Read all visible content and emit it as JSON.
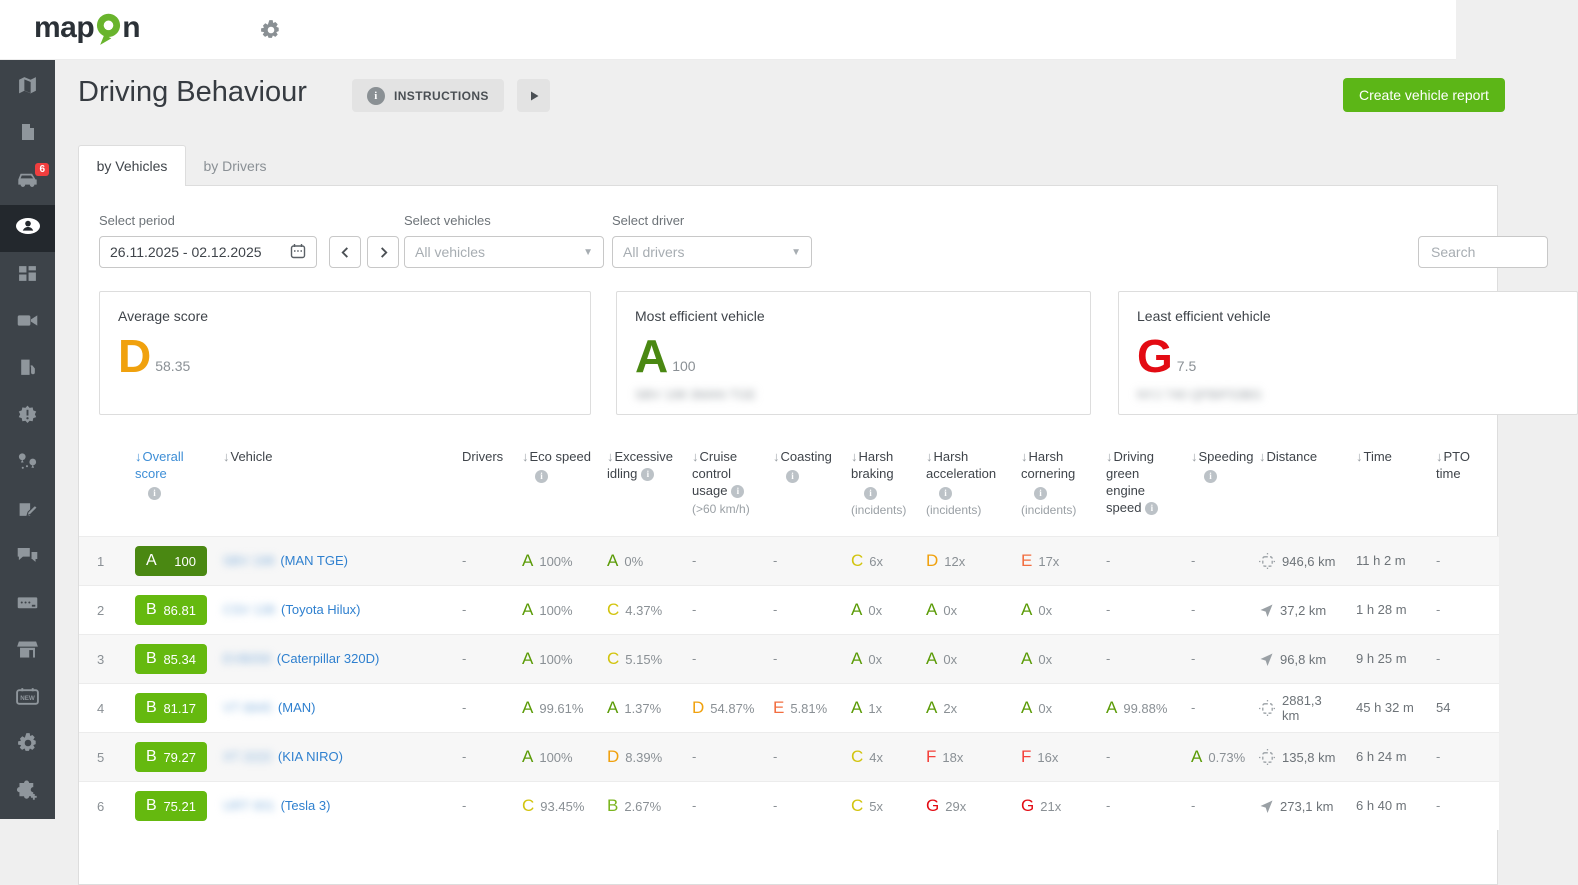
{
  "topbar": {
    "logo_text_left": "map",
    "logo_text_right": "n"
  },
  "sidebar": {
    "items": [
      {
        "name": "map",
        "icon": "map"
      },
      {
        "name": "documents",
        "icon": "doc"
      },
      {
        "name": "vehicles",
        "icon": "car",
        "badge": "6"
      },
      {
        "name": "drivers",
        "icon": "person",
        "active": true
      },
      {
        "name": "dashboard",
        "icon": "dash"
      },
      {
        "name": "video",
        "icon": "video"
      },
      {
        "name": "fuel",
        "icon": "fuel"
      },
      {
        "name": "alerts",
        "icon": "alert"
      },
      {
        "name": "routes",
        "icon": "route"
      },
      {
        "name": "tasks",
        "icon": "tasks"
      },
      {
        "name": "chat",
        "icon": "chat"
      },
      {
        "name": "keypad",
        "icon": "keypad"
      },
      {
        "name": "marketplace",
        "icon": "store"
      },
      {
        "name": "calendar-new",
        "icon": "calnew"
      },
      {
        "name": "settings",
        "icon": "gear"
      },
      {
        "name": "addons",
        "icon": "addon"
      }
    ]
  },
  "header": {
    "title": "Driving Behaviour",
    "instructions_label": "INSTRUCTIONS",
    "create_report_label": "Create vehicle report"
  },
  "tabs": {
    "by_vehicles": "by Vehicles",
    "by_drivers": "by Drivers"
  },
  "filters": {
    "period_label": "Select period",
    "period_value": "26.11.2025 - 02.12.2025",
    "vehicles_label": "Select vehicles",
    "vehicles_value": "All vehicles",
    "driver_label": "Select driver",
    "driver_value": "All drivers",
    "search_placeholder": "Search"
  },
  "cards": [
    {
      "title": "Average score",
      "grade": "D",
      "score": "58.35",
      "grade_color": "#f0a10e",
      "vehicle": ""
    },
    {
      "title": "Most efficient vehicle",
      "grade": "A",
      "score": "100",
      "grade_color": "#4a8812",
      "vehicle": "SBV 198 3MAN TGE",
      "vehicle_blurred": true
    },
    {
      "title": "Least efficient vehicle",
      "grade": "G",
      "score": "7.5",
      "grade_color": "#e30b13",
      "vehicle": "NYJ 740 QFBIF53BG",
      "vehicle_blurred": true
    }
  ],
  "table": {
    "grade_colors": {
      "A": "#5b9b07",
      "B": "#7ab41d",
      "C": "#d2c40f",
      "D": "#f0a10e",
      "E": "#f26d3f",
      "F": "#f4403a",
      "G": "#e30b13"
    },
    "badge_colors": {
      "A": "#4a8812",
      "B": "#65b90f"
    },
    "columns": [
      {
        "label": "Overall score"
      },
      {
        "label": "Vehicle"
      },
      {
        "label": "Drivers"
      },
      {
        "label": "Eco speed"
      },
      {
        "label": "Excessive idling"
      },
      {
        "label": "Cruise control usage",
        "sub": "(>60 km/h)"
      },
      {
        "label": "Coasting"
      },
      {
        "label": "Harsh braking",
        "sub": "(incidents)"
      },
      {
        "label": "Harsh acceleration",
        "sub": "(incidents)"
      },
      {
        "label": "Harsh cornering",
        "sub": "(incidents)"
      },
      {
        "label": "Driving green engine speed"
      },
      {
        "label": "Speeding"
      },
      {
        "label": "Distance"
      },
      {
        "label": "Time"
      },
      {
        "label": "PTO time"
      }
    ],
    "rows": [
      {
        "num": "1",
        "grade": "A",
        "score": "100",
        "plate": "SBV 198",
        "model": "(MAN TGE)",
        "drivers": "-",
        "eco": {
          "g": "A",
          "v": "100%"
        },
        "idling": {
          "g": "A",
          "v": "0%"
        },
        "cruise": null,
        "coasting": null,
        "braking": {
          "g": "C",
          "v": "6x"
        },
        "accel": {
          "g": "D",
          "v": "12x"
        },
        "cornering": {
          "g": "E",
          "v": "17x"
        },
        "green": null,
        "speeding": null,
        "dist_icon": "chip",
        "distance": "946,6 km",
        "time": "11 h 2 m",
        "pto": "-"
      },
      {
        "num": "2",
        "grade": "B",
        "score": "86.81",
        "plate": "CSV 138",
        "model": "(Toyota Hilux)",
        "drivers": "-",
        "eco": {
          "g": "A",
          "v": "100%"
        },
        "idling": {
          "g": "C",
          "v": "4.37%"
        },
        "cruise": null,
        "coasting": null,
        "braking": {
          "g": "A",
          "v": "0x"
        },
        "accel": {
          "g": "A",
          "v": "0x"
        },
        "cornering": {
          "g": "A",
          "v": "0x"
        },
        "green": null,
        "speeding": null,
        "dist_icon": "gps",
        "distance": "37,2 km",
        "time": "1 h 28 m",
        "pto": "-"
      },
      {
        "num": "3",
        "grade": "B",
        "score": "85.34",
        "plate": "EVB058",
        "model": "(Caterpillar 320D)",
        "drivers": "-",
        "eco": {
          "g": "A",
          "v": "100%"
        },
        "idling": {
          "g": "C",
          "v": "5.15%"
        },
        "cruise": null,
        "coasting": null,
        "braking": {
          "g": "A",
          "v": "0x"
        },
        "accel": {
          "g": "A",
          "v": "0x"
        },
        "cornering": {
          "g": "A",
          "v": "0x"
        },
        "green": null,
        "speeding": null,
        "dist_icon": "gps",
        "distance": "96,8 km",
        "time": "9 h 25 m",
        "pto": "-"
      },
      {
        "num": "4",
        "grade": "B",
        "score": "81.17",
        "plate": "VT 6845",
        "model": "(MAN)",
        "drivers": "-",
        "eco": {
          "g": "A",
          "v": "99.61%"
        },
        "idling": {
          "g": "A",
          "v": "1.37%"
        },
        "cruise": {
          "g": "D",
          "v": "54.87%"
        },
        "coasting": {
          "g": "E",
          "v": "5.81%"
        },
        "braking": {
          "g": "A",
          "v": "1x"
        },
        "accel": {
          "g": "A",
          "v": "2x"
        },
        "cornering": {
          "g": "A",
          "v": "0x"
        },
        "green": {
          "g": "A",
          "v": "99.88%"
        },
        "speeding": null,
        "dist_icon": "chip",
        "distance": "2881,3 km",
        "time": "45 h 32 m",
        "pto": "54"
      },
      {
        "num": "5",
        "grade": "B",
        "score": "79.27",
        "plate": "XT 2222",
        "model": "(KIA NIRO)",
        "drivers": "-",
        "eco": {
          "g": "A",
          "v": "100%"
        },
        "idling": {
          "g": "D",
          "v": "8.39%"
        },
        "cruise": null,
        "coasting": null,
        "braking": {
          "g": "C",
          "v": "4x"
        },
        "accel": {
          "g": "F",
          "v": "18x"
        },
        "cornering": {
          "g": "F",
          "v": "16x"
        },
        "green": null,
        "speeding": {
          "g": "A",
          "v": "0.73%"
        },
        "dist_icon": "chip",
        "distance": "135,8 km",
        "time": "6 h 24 m",
        "pto": "-"
      },
      {
        "num": "6",
        "grade": "B",
        "score": "75.21",
        "plate": "URT 001",
        "model": "(Tesla 3)",
        "drivers": "-",
        "eco": {
          "g": "C",
          "v": "93.45%"
        },
        "idling": {
          "g": "B",
          "v": "2.67%"
        },
        "cruise": null,
        "coasting": null,
        "braking": {
          "g": "C",
          "v": "5x"
        },
        "accel": {
          "g": "G",
          "v": "29x"
        },
        "cornering": {
          "g": "G",
          "v": "21x"
        },
        "green": null,
        "speeding": null,
        "dist_icon": "gps",
        "distance": "273,1 km",
        "time": "6 h 40 m",
        "pto": "-"
      }
    ]
  }
}
